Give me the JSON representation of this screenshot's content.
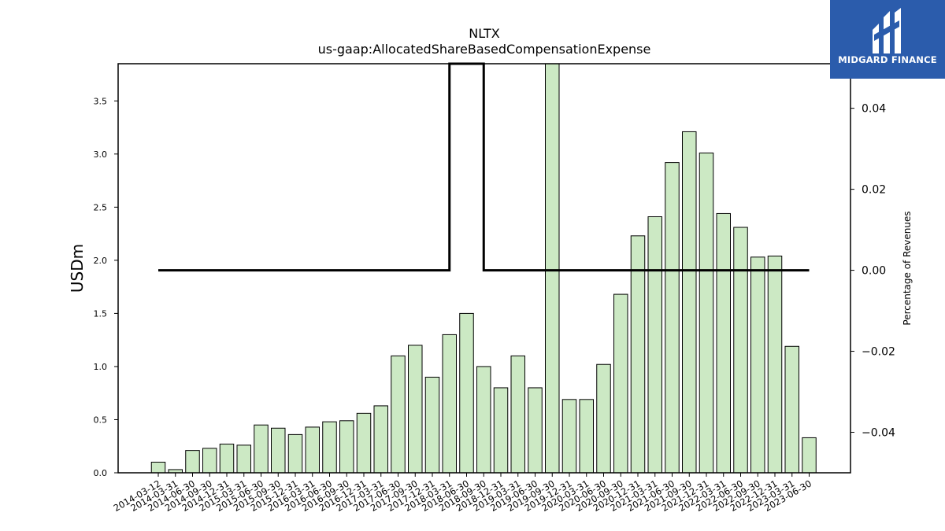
{
  "logo": {
    "text": "MIDGARD FINANCE"
  },
  "chart_data": {
    "type": "bar",
    "title": "NLTX",
    "subtitle": "us-gaap:AllocatedShareBasedCompensationExpense",
    "ylabel": "USDm",
    "ylabel_right": "Percentage of Revenues",
    "ylim": [
      0,
      3.85
    ],
    "ylim_right": [
      -0.05,
      0.051
    ],
    "yticks": [
      "0.0",
      "0.5",
      "1.0",
      "1.5",
      "2.0",
      "2.5",
      "3.0",
      "3.5"
    ],
    "yticks_right": [
      "−0.04",
      "−0.02",
      "0.00",
      "0.02",
      "0.04"
    ],
    "bar_color": "#cce9c4",
    "line_color": "#000000",
    "categories": [
      "2014-03-12",
      "2014-03-31",
      "2014-06-30",
      "2014-09-30",
      "2014-12-31",
      "2015-03-31",
      "2015-06-30",
      "2015-09-30",
      "2015-12-31",
      "2016-03-31",
      "2016-06-30",
      "2016-09-30",
      "2016-12-31",
      "2017-03-31",
      "2017-06-30",
      "2017-09-30",
      "2017-12-31",
      "2018-03-31",
      "2018-06-30",
      "2018-09-30",
      "2018-12-31",
      "2019-03-31",
      "2019-06-30",
      "2019-09-30",
      "2019-12-31",
      "2020-03-31",
      "2020-06-30",
      "2020-09-30",
      "2020-12-31",
      "2021-03-31",
      "2021-06-30",
      "2021-09-30",
      "2021-12-31",
      "2022-03-31",
      "2022-06-30",
      "2022-09-30",
      "2022-12-31",
      "2023-03-31",
      "2023-06-30"
    ],
    "values": [
      0.1,
      0.03,
      0.21,
      0.23,
      0.27,
      0.26,
      0.45,
      0.42,
      0.36,
      0.43,
      0.48,
      0.49,
      0.56,
      0.63,
      1.1,
      1.2,
      0.9,
      1.3,
      1.5,
      1.0,
      0.8,
      1.1,
      0.8,
      3.9,
      0.69,
      0.69,
      1.02,
      1.68,
      2.23,
      2.41,
      2.92,
      3.21,
      3.01,
      2.44,
      2.31,
      2.03,
      2.04,
      1.19,
      0.33
    ],
    "line_series": {
      "name": "",
      "points": [
        {
          "x": 0,
          "y": 0.0
        },
        {
          "x": 17,
          "y": 0.0
        },
        {
          "x": 17,
          "y": 0.051
        },
        {
          "x": 19,
          "y": 0.051
        },
        {
          "x": 19,
          "y": 0.0
        },
        {
          "x": 38,
          "y": 0.0
        }
      ]
    },
    "grid": false,
    "legend": "none"
  }
}
